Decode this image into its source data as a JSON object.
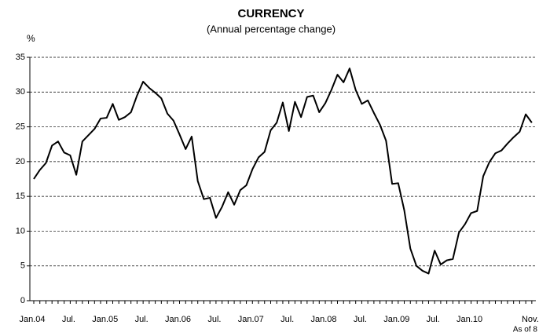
{
  "chart_data": {
    "type": "line",
    "title": "CURRENCY",
    "subtitle": "(Annual percentage change)",
    "y_label": "%",
    "annotation": "As of 8",
    "categories": [
      "Jan.04",
      null,
      null,
      null,
      null,
      null,
      "Jul.",
      null,
      null,
      null,
      null,
      null,
      "Jan.05",
      null,
      null,
      null,
      null,
      null,
      "Jul.",
      null,
      null,
      null,
      null,
      null,
      "Jan.06",
      null,
      null,
      null,
      null,
      null,
      "Jul.",
      null,
      null,
      null,
      null,
      null,
      "Jan.07",
      null,
      null,
      null,
      null,
      null,
      "Jul.",
      null,
      null,
      null,
      null,
      null,
      "Jan.08",
      null,
      null,
      null,
      null,
      null,
      "Jul.",
      null,
      null,
      null,
      null,
      null,
      "Jan.09",
      null,
      null,
      null,
      null,
      null,
      "Jul.",
      null,
      null,
      null,
      null,
      null,
      "Jan.10",
      null,
      null,
      null,
      null,
      null,
      null,
      null,
      null,
      null,
      "Nov."
    ],
    "series": [
      {
        "name": "Currency",
        "color": "#000000",
        "values": [
          17.5,
          18.8,
          19.8,
          22.3,
          22.9,
          21.3,
          20.9,
          18.1,
          22.9,
          23.8,
          24.7,
          26.2,
          26.3,
          28.3,
          26.0,
          26.4,
          27.1,
          29.5,
          31.5,
          30.6,
          29.9,
          29.1,
          26.9,
          25.9,
          23.9,
          21.8,
          23.6,
          17.2,
          14.6,
          14.8,
          11.9,
          13.5,
          15.6,
          13.8,
          15.9,
          16.6,
          18.9,
          20.6,
          21.4,
          24.5,
          25.6,
          28.5,
          24.4,
          28.6,
          26.4,
          29.3,
          29.5,
          27.1,
          28.4,
          30.3,
          32.5,
          31.4,
          33.4,
          30.3,
          28.3,
          28.8,
          27.0,
          25.3,
          23.0,
          16.8,
          16.9,
          13.0,
          7.5,
          5.0,
          4.3,
          3.9,
          7.2,
          5.2,
          5.8,
          6.0,
          9.8,
          11.0,
          12.6,
          12.9,
          17.9,
          19.9,
          21.2,
          21.6,
          22.6,
          23.5,
          24.3,
          26.8,
          25.6
        ]
      }
    ],
    "ylim": [
      0,
      35
    ],
    "yticks": [
      0,
      5,
      10,
      15,
      20,
      25,
      30,
      35
    ],
    "grid": true
  }
}
